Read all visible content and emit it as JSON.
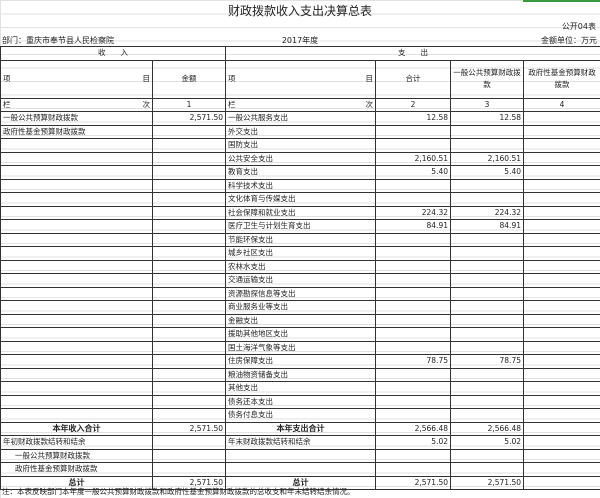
{
  "title": "财政拨款收入支出决算总表",
  "form_code": "公开04表",
  "department": "部门：重庆市奉节县人民检察院",
  "year": "2017年度",
  "unit": "金额单位：万元",
  "sections": {
    "income": "收　　入",
    "expense": "支　　出"
  },
  "headers": {
    "item_left": "项",
    "item_right": "目",
    "amount": "金额",
    "total": "合计",
    "general": "一般公共预算财政拨款",
    "fund": "政府性基金预算财政拨款"
  },
  "col_index": {
    "label_left": "栏",
    "label_right": "次",
    "c1": "1",
    "c2": "2",
    "c3": "3",
    "c4": "4"
  },
  "rows": [
    {
      "in": "一般公共预算财政拨款",
      "in_amt": "2,571.50",
      "out": "一般公共服务支出",
      "total": "12.58",
      "general": "12.58",
      "fund": ""
    },
    {
      "in": "政府性基金预算财政拨款",
      "in_amt": "",
      "out": "外交支出",
      "total": "",
      "general": "",
      "fund": ""
    },
    {
      "in": "",
      "in_amt": "",
      "out": "国防支出",
      "total": "",
      "general": "",
      "fund": ""
    },
    {
      "in": "",
      "in_amt": "",
      "out": "公共安全支出",
      "total": "2,160.51",
      "general": "2,160.51",
      "fund": ""
    },
    {
      "in": "",
      "in_amt": "",
      "out": "教育支出",
      "total": "5.40",
      "general": "5.40",
      "fund": ""
    },
    {
      "in": "",
      "in_amt": "",
      "out": "科学技术支出",
      "total": "",
      "general": "",
      "fund": ""
    },
    {
      "in": "",
      "in_amt": "",
      "out": "文化体育与传媒支出",
      "total": "",
      "general": "",
      "fund": ""
    },
    {
      "in": "",
      "in_amt": "",
      "out": "社会保障和就业支出",
      "total": "224.32",
      "general": "224.32",
      "fund": ""
    },
    {
      "in": "",
      "in_amt": "",
      "out": "医疗卫生与计划生育支出",
      "total": "84.91",
      "general": "84.91",
      "fund": ""
    },
    {
      "in": "",
      "in_amt": "",
      "out": "节能环保支出",
      "total": "",
      "general": "",
      "fund": ""
    },
    {
      "in": "",
      "in_amt": "",
      "out": "城乡社区支出",
      "total": "",
      "general": "",
      "fund": ""
    },
    {
      "in": "",
      "in_amt": "",
      "out": "农林水支出",
      "total": "",
      "general": "",
      "fund": ""
    },
    {
      "in": "",
      "in_amt": "",
      "out": "交通运输支出",
      "total": "",
      "general": "",
      "fund": ""
    },
    {
      "in": "",
      "in_amt": "",
      "out": "资源勘探信息等支出",
      "total": "",
      "general": "",
      "fund": ""
    },
    {
      "in": "",
      "in_amt": "",
      "out": "商业服务业等支出",
      "total": "",
      "general": "",
      "fund": ""
    },
    {
      "in": "",
      "in_amt": "",
      "out": "金融支出",
      "total": "",
      "general": "",
      "fund": ""
    },
    {
      "in": "",
      "in_amt": "",
      "out": "援助其他地区支出",
      "total": "",
      "general": "",
      "fund": ""
    },
    {
      "in": "",
      "in_amt": "",
      "out": "国土海洋气象等支出",
      "total": "",
      "general": "",
      "fund": ""
    },
    {
      "in": "",
      "in_amt": "",
      "out": "住房保障支出",
      "total": "78.75",
      "general": "78.75",
      "fund": ""
    },
    {
      "in": "",
      "in_amt": "",
      "out": "粮油物资储备支出",
      "total": "",
      "general": "",
      "fund": ""
    },
    {
      "in": "",
      "in_amt": "",
      "out": "其他支出",
      "total": "",
      "general": "",
      "fund": ""
    },
    {
      "in": "",
      "in_amt": "",
      "out": "债务还本支出",
      "total": "",
      "general": "",
      "fund": ""
    },
    {
      "in": "",
      "in_amt": "",
      "out": "债务付息支出",
      "total": "",
      "general": "",
      "fund": ""
    }
  ],
  "year_total": {
    "in": "本年收入合计",
    "in_amt": "2,571.50",
    "out": "本年支出合计",
    "total": "2,566.48",
    "general": "2,566.48"
  },
  "carry": {
    "in": "年初财政拨款结转和结余",
    "out": "年末财政拨款结转和结余",
    "total": "5.02",
    "general": "5.02"
  },
  "carry_general": "一般公共预算财政拨款",
  "carry_fund": "政府性基金预算财政拨款",
  "grand_total": {
    "in": "总计",
    "in_amt": "2,571.50",
    "out": "总计",
    "total": "2,571.50",
    "general": "2,571.50"
  },
  "note": "注：本表反映部门本年度一般公共预算财政拨款和政府性基金预算财政拨款的总收支和年末结转结余情况。"
}
